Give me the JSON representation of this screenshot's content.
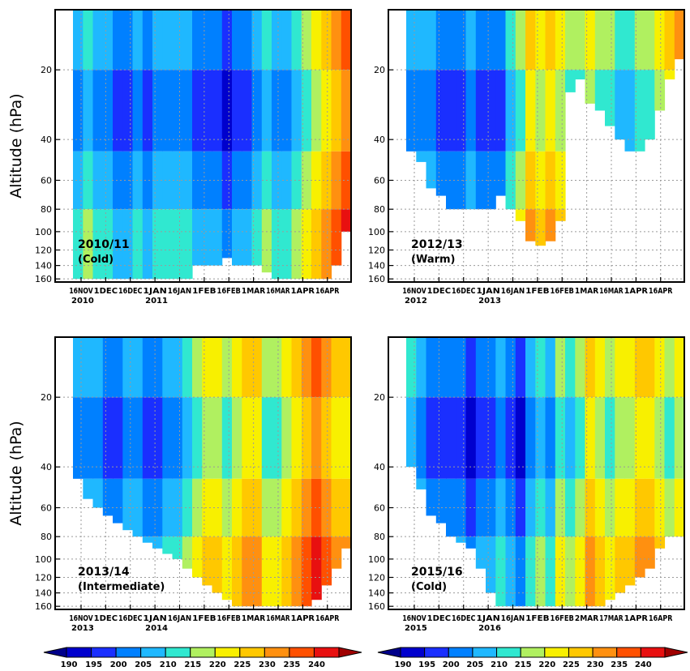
{
  "figure": {
    "ylabel": "Altitude (hPa)"
  },
  "chart_data": [
    {
      "type": "heatmap",
      "panel_label": "2010/11",
      "panel_sublabel": "(Cold)",
      "ylabel": "Altitude (hPa)",
      "y_ticks": [
        20,
        40,
        60,
        80,
        100,
        120,
        140,
        160
      ],
      "x_ticks": [
        "16NOV",
        "1DEC",
        "16DEC",
        "1JAN",
        "16JAN",
        "1FEB",
        "16FEB",
        "1MAR",
        "16MAR",
        "1APR",
        "16APR"
      ],
      "x_year_labels": [
        {
          "at": "16NOV",
          "text": "2010"
        },
        {
          "at": "1JAN",
          "text": "2011"
        }
      ],
      "color_by_time": [
        200,
        205,
        200,
        200,
        195,
        195,
        200,
        195,
        200,
        200,
        200,
        200,
        195,
        195,
        195,
        190,
        195,
        195,
        200,
        205,
        200,
        200,
        205,
        210,
        215,
        220,
        225,
        230
      ],
      "top_pressure_by_time": [
        160,
        160,
        160,
        160,
        160,
        160,
        160,
        160,
        160,
        160,
        160,
        160,
        140,
        140,
        140,
        130,
        140,
        140,
        140,
        150,
        160,
        160,
        160,
        160,
        160,
        160,
        140,
        100
      ]
    },
    {
      "type": "heatmap",
      "panel_label": "2012/13",
      "panel_sublabel": "(Warm)",
      "ylabel": "Altitude (hPa)",
      "y_ticks": [
        20,
        40,
        60,
        80,
        100,
        120,
        140,
        160
      ],
      "x_ticks": [
        "16NOV",
        "1DEC",
        "16DEC",
        "1JAN",
        "16JAN",
        "1FEB",
        "16FEB",
        "1MAR",
        "16MAR",
        "1APR",
        "16APR"
      ],
      "x_year_labels": [
        {
          "at": "16NOV",
          "text": "2012"
        },
        {
          "at": "1JAN",
          "text": "2013"
        }
      ],
      "color_by_time": [
        200,
        200,
        200,
        195,
        195,
        195,
        200,
        195,
        195,
        195,
        205,
        210,
        220,
        215,
        220,
        215,
        210,
        210,
        215,
        210,
        210,
        205,
        205,
        210,
        210,
        215,
        220,
        225
      ],
      "top_pressure_by_time": [
        45,
        50,
        65,
        70,
        80,
        80,
        80,
        80,
        80,
        70,
        80,
        90,
        110,
        115,
        110,
        90,
        25,
        22,
        28,
        30,
        35,
        40,
        45,
        45,
        40,
        30,
        22,
        18
      ]
    },
    {
      "type": "heatmap",
      "panel_label": "2013/14",
      "panel_sublabel": "(Intermediate)",
      "ylabel": "Altitude (hPa)",
      "y_ticks": [
        20,
        40,
        60,
        80,
        100,
        120,
        140,
        160
      ],
      "x_ticks": [
        "16NOV",
        "1DEC",
        "16DEC",
        "1JAN",
        "16JAN",
        "1FEB",
        "16FEB",
        "1MAR",
        "16MAR",
        "1APR",
        "16APR"
      ],
      "x_year_labels": [
        {
          "at": "16NOV",
          "text": "2013"
        },
        {
          "at": "1JAN",
          "text": "2014"
        }
      ],
      "color_by_time": [
        200,
        200,
        200,
        195,
        195,
        200,
        200,
        195,
        195,
        200,
        200,
        205,
        210,
        215,
        215,
        210,
        215,
        220,
        220,
        210,
        210,
        215,
        220,
        225,
        230,
        225,
        220,
        220
      ],
      "top_pressure_by_time": [
        45,
        55,
        60,
        65,
        70,
        75,
        80,
        85,
        90,
        95,
        100,
        110,
        120,
        130,
        140,
        150,
        160,
        160,
        160,
        160,
        160,
        160,
        160,
        160,
        150,
        130,
        110,
        90
      ]
    },
    {
      "type": "heatmap",
      "panel_label": "2015/16",
      "panel_sublabel": "(Cold)",
      "ylabel": "Altitude (hPa)",
      "y_ticks": [
        20,
        40,
        60,
        80,
        100,
        120,
        140,
        160
      ],
      "x_ticks": [
        "16NOV",
        "1DEC",
        "16DEC",
        "1JAN",
        "16JAN",
        "1FEB",
        "16FEB",
        "2MAR",
        "17MAR",
        "1APR",
        "16APR"
      ],
      "x_year_labels": [
        {
          "at": "16NOV",
          "text": "2015"
        },
        {
          "at": "1JAN",
          "text": "2016"
        }
      ],
      "color_by_time": [
        205,
        200,
        195,
        195,
        195,
        195,
        190,
        195,
        195,
        200,
        195,
        190,
        200,
        205,
        200,
        210,
        205,
        210,
        220,
        215,
        210,
        215,
        215,
        220,
        220,
        215,
        210,
        215
      ],
      "top_pressure_by_time": [
        40,
        50,
        65,
        70,
        80,
        85,
        90,
        110,
        140,
        160,
        160,
        160,
        160,
        160,
        160,
        160,
        160,
        160,
        160,
        160,
        150,
        140,
        130,
        120,
        110,
        90,
        80,
        80
      ]
    }
  ],
  "colorbar": {
    "unit_labels": [
      "190",
      "195",
      "200",
      "205",
      "210",
      "215",
      "220",
      "225",
      "230",
      "235",
      "240"
    ],
    "colors": [
      "#00008b",
      "#0000cd",
      "#1a2fff",
      "#0080ff",
      "#1fb8ff",
      "#30e8d0",
      "#b0f060",
      "#f8f000",
      "#ffc800",
      "#ff9010",
      "#ff5000",
      "#e81010",
      "#a00000"
    ]
  }
}
